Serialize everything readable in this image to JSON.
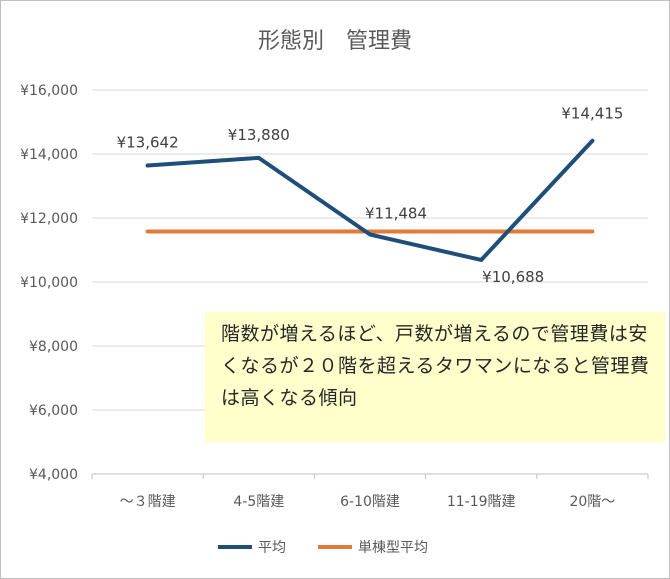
{
  "chart_data": {
    "type": "line",
    "title": "形態別　管理費",
    "categories": [
      "～３階建",
      "4-5階建",
      "6-10階建",
      "11-19階建",
      "20階～"
    ],
    "y_ticks": [
      "¥4,000",
      "¥6,000",
      "¥8,000",
      "¥10,000",
      "¥12,000",
      "¥14,000",
      "¥16,000"
    ],
    "ylim": [
      4000,
      16000
    ],
    "grid": true,
    "legend_position": "bottom",
    "series": [
      {
        "name": "平均",
        "color": "#1f4e79",
        "values": [
          13642,
          13880,
          11484,
          10688,
          14415
        ],
        "labels": [
          "¥13,642",
          "¥13,880",
          "¥11,484",
          "¥10,688",
          "¥14,415"
        ]
      },
      {
        "name": "単棟型平均",
        "color": "#e07b39",
        "values": [
          11580,
          11580,
          11580,
          11580,
          11580
        ]
      }
    ]
  },
  "annotation": {
    "text": "階数が増えるほど、戸数が増えるので管理費は安くなるが２０階を超えるタワマンになると管理費は高くなる傾向"
  }
}
